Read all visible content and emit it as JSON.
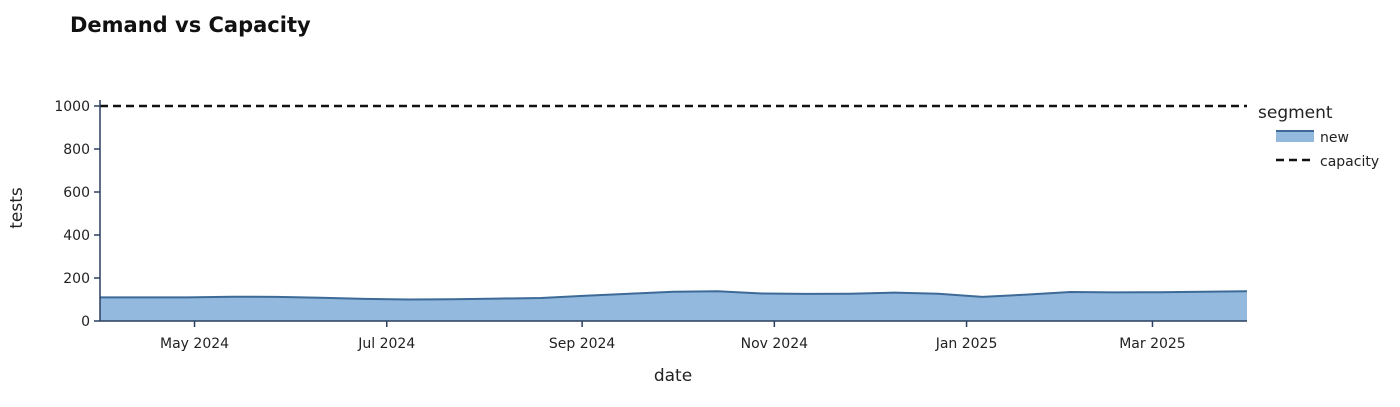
{
  "chart_data": {
    "type": "area",
    "title": "Demand vs Capacity",
    "xlabel": "date",
    "ylabel": "tests",
    "x_range": [
      "2024-04-01",
      "2025-03-31"
    ],
    "ylim": [
      0,
      1000
    ],
    "y_ticks": [
      0,
      200,
      400,
      600,
      800,
      1000
    ],
    "x_ticks": [
      {
        "date": "2024-05-01",
        "label": "May 2024"
      },
      {
        "date": "2024-07-01",
        "label": "Jul 2024"
      },
      {
        "date": "2024-09-01",
        "label": "Sep 2024"
      },
      {
        "date": "2024-11-01",
        "label": "Nov 2024"
      },
      {
        "date": "2025-01-01",
        "label": "Jan 2025"
      },
      {
        "date": "2025-03-01",
        "label": "Mar 2025"
      }
    ],
    "grid": false,
    "legend_position": "right",
    "legend_title": "segment",
    "series": [
      {
        "name": "new",
        "kind": "area",
        "color_line": "#3d6a97",
        "color_fill": "#93bade",
        "points": [
          {
            "date": "2024-04-01",
            "value": 110
          },
          {
            "date": "2024-04-15",
            "value": 110
          },
          {
            "date": "2024-04-29",
            "value": 110
          },
          {
            "date": "2024-05-13",
            "value": 113
          },
          {
            "date": "2024-05-27",
            "value": 112
          },
          {
            "date": "2024-06-10",
            "value": 108
          },
          {
            "date": "2024-06-24",
            "value": 103
          },
          {
            "date": "2024-07-08",
            "value": 100
          },
          {
            "date": "2024-07-22",
            "value": 101
          },
          {
            "date": "2024-08-05",
            "value": 104
          },
          {
            "date": "2024-08-19",
            "value": 107
          },
          {
            "date": "2024-09-02",
            "value": 117
          },
          {
            "date": "2024-09-16",
            "value": 127
          },
          {
            "date": "2024-09-30",
            "value": 136
          },
          {
            "date": "2024-10-14",
            "value": 138
          },
          {
            "date": "2024-10-28",
            "value": 128
          },
          {
            "date": "2024-11-11",
            "value": 126
          },
          {
            "date": "2024-11-25",
            "value": 127
          },
          {
            "date": "2024-12-09",
            "value": 132
          },
          {
            "date": "2024-12-23",
            "value": 127
          },
          {
            "date": "2025-01-06",
            "value": 112
          },
          {
            "date": "2025-01-20",
            "value": 123
          },
          {
            "date": "2025-02-03",
            "value": 135
          },
          {
            "date": "2025-02-17",
            "value": 133
          },
          {
            "date": "2025-03-03",
            "value": 134
          },
          {
            "date": "2025-03-17",
            "value": 136
          },
          {
            "date": "2025-03-31",
            "value": 138
          }
        ]
      },
      {
        "name": "capacity",
        "kind": "line",
        "dash": "dashed",
        "color_line": "#111111",
        "value": 1000
      }
    ],
    "axis_color": "#2a3f5f"
  }
}
